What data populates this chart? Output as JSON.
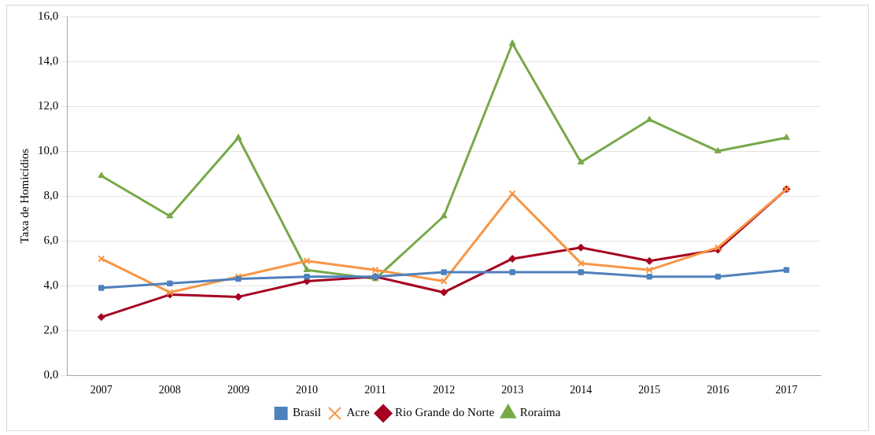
{
  "chart_data": {
    "type": "line",
    "ylabel": "Taxa de Homicídios",
    "categories": [
      "2007",
      "2008",
      "2009",
      "2010",
      "2011",
      "2012",
      "2013",
      "2014",
      "2015",
      "2016",
      "2017"
    ],
    "series": [
      {
        "name": "Brasil",
        "color": "#4f81bd",
        "marker": "square",
        "values": [
          3.9,
          4.1,
          4.3,
          4.4,
          4.4,
          4.6,
          4.6,
          4.6,
          4.4,
          4.4,
          4.7
        ]
      },
      {
        "name": "Acre",
        "color": "#f79646",
        "marker": "cross",
        "values": [
          5.2,
          3.7,
          4.4,
          5.1,
          4.7,
          4.2,
          8.1,
          5.0,
          4.7,
          5.7,
          8.3
        ]
      },
      {
        "name": "Rio Grande do Norte",
        "color": "#a50021",
        "marker": "diamond",
        "values": [
          2.6,
          3.6,
          3.5,
          4.2,
          4.4,
          3.7,
          5.2,
          5.7,
          5.1,
          5.6,
          8.3
        ]
      },
      {
        "name": "Roraima",
        "color": "#77a94a",
        "marker": "triangle",
        "values": [
          8.9,
          7.1,
          10.6,
          4.7,
          4.3,
          7.1,
          14.8,
          9.5,
          11.4,
          10.0,
          10.6
        ]
      }
    ],
    "ylim": [
      0,
      16
    ],
    "yticks": [
      {
        "value": 0,
        "label": "0,0"
      },
      {
        "value": 2,
        "label": "2,0"
      },
      {
        "value": 4,
        "label": "4,0"
      },
      {
        "value": 6,
        "label": "6,0"
      },
      {
        "value": 8,
        "label": "8,0"
      },
      {
        "value": 10,
        "label": "10,0"
      },
      {
        "value": 12,
        "label": "12,0"
      },
      {
        "value": 14,
        "label": "14,0"
      },
      {
        "value": 16,
        "label": "16,0"
      }
    ],
    "grid": "y",
    "legend": "bottom",
    "line_style": "solid"
  }
}
